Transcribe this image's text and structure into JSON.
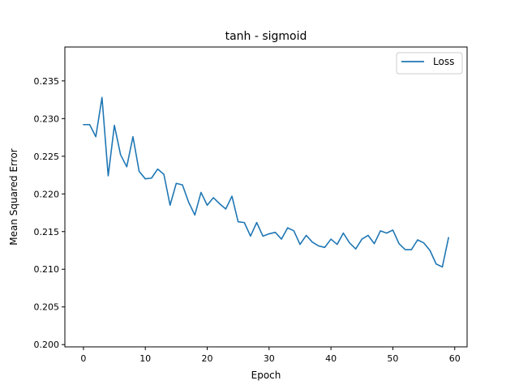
{
  "chart_data": {
    "type": "line",
    "title": "tanh - sigmoid",
    "xlabel": "Epoch",
    "ylabel": "Mean Squared Error",
    "xlim": [
      -3,
      62
    ],
    "ylim": [
      0.1997,
      0.2395
    ],
    "xticks": [
      0,
      10,
      20,
      30,
      40,
      50,
      60
    ],
    "yticks": [
      0.2,
      0.205,
      0.21,
      0.215,
      0.22,
      0.225,
      0.23,
      0.235
    ],
    "ytick_labels": [
      "0.200",
      "0.205",
      "0.210",
      "0.215",
      "0.220",
      "0.225",
      "0.230",
      "0.235"
    ],
    "legend_position": "top-right",
    "grid": false,
    "series": [
      {
        "name": "Loss",
        "color": "#1f77b4",
        "x": [
          0,
          1,
          2,
          3,
          4,
          5,
          6,
          7,
          8,
          9,
          10,
          11,
          12,
          13,
          14,
          15,
          16,
          17,
          18,
          19,
          20,
          21,
          22,
          23,
          24,
          25,
          26,
          27,
          28,
          29,
          30,
          31,
          32,
          33,
          34,
          35,
          36,
          37,
          38,
          39,
          40,
          41,
          42,
          43,
          44,
          45,
          46,
          47,
          48,
          49,
          50,
          51,
          52,
          53,
          54,
          55,
          56,
          57,
          58,
          59
        ],
        "values": [
          0.2292,
          0.2292,
          0.2276,
          0.2328,
          0.2224,
          0.2291,
          0.2252,
          0.2236,
          0.2276,
          0.223,
          0.222,
          0.2221,
          0.2233,
          0.2226,
          0.2185,
          0.2214,
          0.2212,
          0.2189,
          0.2172,
          0.2202,
          0.2185,
          0.2195,
          0.2187,
          0.218,
          0.2197,
          0.2163,
          0.2162,
          0.2144,
          0.2162,
          0.2144,
          0.2147,
          0.2149,
          0.214,
          0.2155,
          0.2151,
          0.2133,
          0.2145,
          0.2136,
          0.2131,
          0.2129,
          0.214,
          0.2133,
          0.2148,
          0.2135,
          0.2127,
          0.214,
          0.2145,
          0.2134,
          0.2151,
          0.2148,
          0.2152,
          0.2134,
          0.2126,
          0.2126,
          0.2139,
          0.2135,
          0.2125,
          0.2107,
          0.2103,
          0.2142
        ]
      }
    ]
  }
}
